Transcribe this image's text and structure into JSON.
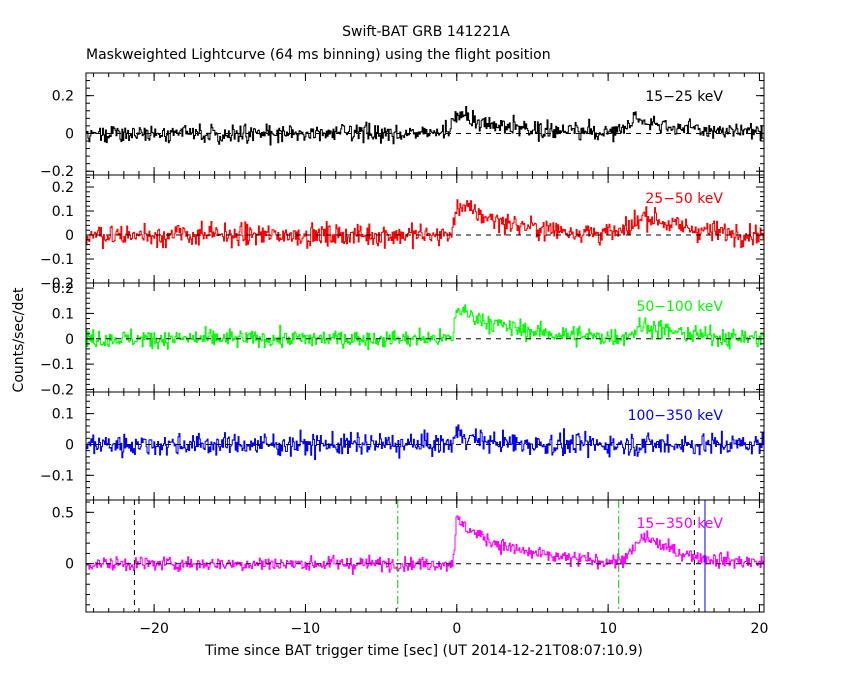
{
  "chart_data": {
    "type": "line",
    "title": "Swift-BAT GRB 141221A",
    "subtitle": "Maskweighted Lightcurve (64 ms binning) using the flight position",
    "xlabel": "Time since BAT trigger time [sec] (UT 2014-12-21T08:07:10.9)",
    "ylabel": "Counts/sec/det",
    "xlim": [
      -24.5,
      20.3
    ],
    "x_ticks": [
      -20,
      -10,
      0,
      10,
      20
    ],
    "x_tick_labels": [
      "−20",
      "−10",
      "0",
      "10",
      "20"
    ],
    "bin_width_sec": 0.064,
    "grid": false,
    "panels": [
      {
        "name": "15−25 keV",
        "color": "#000000",
        "ylim": [
          -0.22,
          0.32
        ],
        "y_ticks": [
          -0.2,
          0,
          0.2
        ],
        "y_tick_labels": [
          "−0.2",
          "0",
          "0.2"
        ],
        "noise_sigma": 0.045,
        "signal": [
          {
            "t0": 0.0,
            "peak": 0.1,
            "rise": 0.5,
            "decay": 3.5
          },
          {
            "t0": 12.0,
            "peak": 0.08,
            "rise": 1.0,
            "decay": 2.5
          }
        ]
      },
      {
        "name": "25−50 keV",
        "color": "#ff0000",
        "ylim": [
          -0.2,
          0.25
        ],
        "y_ticks": [
          -0.2,
          -0.1,
          0,
          0.1,
          0.2
        ],
        "y_tick_labels": [
          "−0.2",
          "−0.1",
          "0",
          "0.1",
          "0.2"
        ],
        "noise_sigma": 0.045,
        "signal": [
          {
            "t0": 0.0,
            "peak": 0.13,
            "rise": 0.2,
            "decay": 3.5
          },
          {
            "t0": 12.5,
            "peak": 0.08,
            "rise": 1.0,
            "decay": 2.5
          }
        ]
      },
      {
        "name": "50−100 keV",
        "color": "#00ff00",
        "ylim": [
          -0.21,
          0.22
        ],
        "y_ticks": [
          -0.2,
          -0.1,
          0,
          0.1,
          0.2
        ],
        "y_tick_labels": [
          "−0.2",
          "−0.1",
          "0",
          "0.1",
          "0.2"
        ],
        "noise_sigma": 0.035,
        "signal": [
          {
            "t0": 0.0,
            "peak": 0.12,
            "rise": 0.2,
            "decay": 3.5
          },
          {
            "t0": 12.5,
            "peak": 0.05,
            "rise": 1.0,
            "decay": 2.5
          }
        ]
      },
      {
        "name": "100−350 keV",
        "color": "#0000ff",
        "ylim": [
          -0.18,
          0.17
        ],
        "y_ticks": [
          -0.1,
          0,
          0.1
        ],
        "y_tick_labels": [
          "−0.1",
          "0",
          "0.1"
        ],
        "noise_sigma": 0.035,
        "signal": [
          {
            "t0": 0.0,
            "peak": 0.04,
            "rise": 0.2,
            "decay": 1.5
          }
        ]
      },
      {
        "name": "15−350 keV",
        "color": "#ff00ff",
        "ylim": [
          -0.47,
          0.62
        ],
        "y_ticks": [
          0,
          0.5
        ],
        "y_tick_labels": [
          "0",
          "0.5"
        ],
        "noise_sigma": 0.07,
        "signal": [
          {
            "t0": 0.0,
            "peak": 0.42,
            "rise": 0.2,
            "decay": 3.5
          },
          {
            "t0": 12.5,
            "peak": 0.25,
            "rise": 1.0,
            "decay": 2.5
          }
        ],
        "vlines": [
          {
            "t": -21.3,
            "color": "#000000",
            "style": "dashed"
          },
          {
            "t": -3.9,
            "color": "#00cc00",
            "style": "dashdot"
          },
          {
            "t": 10.7,
            "color": "#00cc00",
            "style": "dashdot"
          },
          {
            "t": 15.7,
            "color": "#000000",
            "style": "dashed"
          },
          {
            "t": 16.4,
            "color": "#0000ff",
            "style": "solid"
          }
        ]
      }
    ]
  }
}
